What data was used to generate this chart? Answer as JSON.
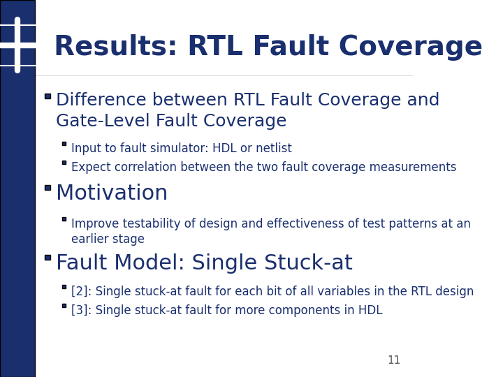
{
  "title": "Results: RTL Fault Coverage",
  "title_color": "#1a2f6e",
  "title_fontsize": 28,
  "background_color": "#ffffff",
  "left_bar_color": "#1a2f6e",
  "left_bar_width": 0.085,
  "accent_color": "#4a6fa5",
  "bullet_color": "#1a2f6e",
  "bullet1_text": "Difference between RTL Fault Coverage and\nGate-Level Fault Coverage",
  "bullet1_fontsize": 18,
  "sub_bullet1a": "Input to fault simulator: HDL or netlist",
  "sub_bullet1b": "Expect correlation between the two fault coverage measurements",
  "sub_fontsize": 12,
  "bullet2_text": "Motivation",
  "bullet2_fontsize": 22,
  "sub_bullet2": "Improve testability of design and effectiveness of test patterns at an\nearlier stage",
  "bullet3_text": "Fault Model: Single Stuck-at",
  "bullet3_fontsize": 22,
  "sub_bullet3a": "[2]: Single stuck-at fault for each bit of all variables in the RTL design",
  "sub_bullet3b": "[3]: Single stuck-at fault for more components in HDL",
  "page_number": "11",
  "logo_color": "#1a2f6e",
  "logo_accent": "#4a6fa5"
}
